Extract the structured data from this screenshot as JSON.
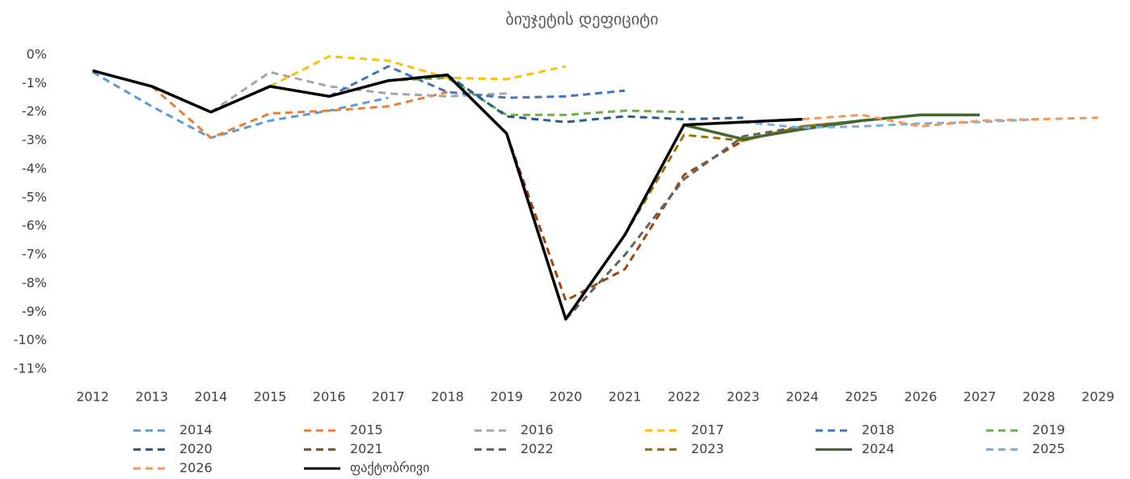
{
  "chart_data": {
    "type": "line",
    "title": "ბიუჯეტის დეფიციტი",
    "categories": [
      "2012",
      "2013",
      "2014",
      "2015",
      "2016",
      "2017",
      "2018",
      "2019",
      "2020",
      "2021",
      "2022",
      "2023",
      "2024",
      "2025",
      "2026",
      "2027",
      "2028",
      "2029"
    ],
    "ylim": [
      -11.5,
      0.3
    ],
    "yticks": [
      {
        "value": 0,
        "label": "0%"
      },
      {
        "value": -1,
        "label": "-1%"
      },
      {
        "value": -2,
        "label": "-2%"
      },
      {
        "value": -3,
        "label": "-3%"
      },
      {
        "value": -4,
        "label": "-4%"
      },
      {
        "value": -5,
        "label": "-5%"
      },
      {
        "value": -6,
        "label": "-6%"
      },
      {
        "value": -7,
        "label": "-7%"
      },
      {
        "value": -8,
        "label": "-8%"
      },
      {
        "value": -9,
        "label": "-9%"
      },
      {
        "value": -10,
        "label": "-10%"
      },
      {
        "value": -11,
        "label": "-11%"
      }
    ],
    "grid": false,
    "legend": "bottom",
    "series": [
      {
        "name": "2014",
        "color": "#5b9bd5",
        "dashed": true,
        "values": [
          -0.6,
          -1.8,
          -2.9,
          -2.3,
          -1.95,
          -1.5,
          null,
          null,
          null,
          null,
          null,
          null,
          null,
          null,
          null,
          null,
          null,
          null
        ]
      },
      {
        "name": "2015",
        "color": "#ed7d31",
        "dashed": true,
        "values": [
          null,
          -1.1,
          -2.9,
          -2.05,
          -1.95,
          -1.8,
          -1.3,
          null,
          null,
          null,
          null,
          null,
          null,
          null,
          null,
          null,
          null,
          null
        ]
      },
      {
        "name": "2016",
        "color": "#a5a5a5",
        "dashed": true,
        "values": [
          null,
          null,
          -2.0,
          -0.6,
          -1.1,
          -1.35,
          -1.45,
          -1.35,
          null,
          null,
          null,
          null,
          null,
          null,
          null,
          null,
          null,
          null
        ]
      },
      {
        "name": "2017",
        "color": "#ffc000",
        "dashed": true,
        "values": [
          null,
          null,
          null,
          -1.1,
          -0.05,
          -0.2,
          -0.8,
          -0.85,
          -0.4,
          null,
          null,
          null,
          null,
          null,
          null,
          null,
          null,
          null
        ]
      },
      {
        "name": "2018",
        "color": "#4472c4",
        "dashed": true,
        "values": [
          null,
          null,
          null,
          null,
          -1.45,
          -0.4,
          -1.3,
          -1.5,
          -1.45,
          -1.25,
          null,
          null,
          null,
          null,
          null,
          null,
          null,
          null
        ]
      },
      {
        "name": "2019",
        "color": "#70ad47",
        "dashed": true,
        "values": [
          null,
          null,
          null,
          null,
          null,
          -0.9,
          -0.8,
          -2.1,
          -2.1,
          -1.95,
          -2.0,
          null,
          null,
          null,
          null,
          null,
          null,
          null
        ]
      },
      {
        "name": "2020",
        "color": "#255e91",
        "dashed": true,
        "values": [
          null,
          null,
          null,
          null,
          null,
          null,
          -0.7,
          -2.15,
          -2.35,
          -2.15,
          -2.25,
          -2.2,
          null,
          null,
          null,
          null,
          null,
          null
        ]
      },
      {
        "name": "2021",
        "color": "#9e480e",
        "dashed": true,
        "values": [
          null,
          null,
          null,
          null,
          null,
          null,
          null,
          -2.75,
          -8.6,
          -7.5,
          -4.2,
          -3.0,
          -2.5,
          null,
          null,
          null,
          null,
          null
        ]
      },
      {
        "name": "2022",
        "color": "#636363",
        "dashed": true,
        "values": [
          null,
          null,
          null,
          null,
          null,
          null,
          null,
          null,
          -9.25,
          -7.0,
          -4.35,
          -2.85,
          -2.5,
          -2.3,
          null,
          null,
          null,
          null
        ]
      },
      {
        "name": "2023",
        "color": "#997300",
        "dashed": true,
        "values": [
          null,
          null,
          null,
          null,
          null,
          null,
          null,
          null,
          null,
          -6.3,
          -2.8,
          -3.0,
          -2.5,
          -2.3,
          -2.1,
          null,
          null,
          null
        ]
      },
      {
        "name": "2024",
        "color": "#43682b",
        "dashed": false,
        "values": [
          null,
          null,
          null,
          null,
          null,
          null,
          null,
          null,
          null,
          null,
          -2.45,
          -2.95,
          -2.6,
          -2.3,
          -2.1,
          -2.1,
          null,
          null
        ]
      },
      {
        "name": "2025",
        "color": "#7cafdd",
        "dashed": true,
        "values": [
          null,
          null,
          null,
          null,
          null,
          null,
          null,
          null,
          null,
          null,
          null,
          -2.35,
          -2.55,
          -2.5,
          -2.4,
          -2.35,
          -2.25,
          null
        ]
      },
      {
        "name": "2026",
        "color": "#f1975a",
        "dashed": true,
        "values": [
          null,
          null,
          null,
          null,
          null,
          null,
          null,
          null,
          null,
          null,
          null,
          null,
          -2.25,
          -2.1,
          -2.5,
          -2.3,
          -2.25,
          -2.2
        ]
      },
      {
        "name": "ფაქტობრივი",
        "color": "#000000",
        "dashed": false,
        "values": [
          -0.55,
          -1.1,
          -2.0,
          -1.1,
          -1.45,
          -0.9,
          -0.7,
          -2.75,
          -9.25,
          -6.3,
          -2.45,
          -2.35,
          -2.25,
          null,
          null,
          null,
          null,
          null
        ]
      }
    ]
  }
}
